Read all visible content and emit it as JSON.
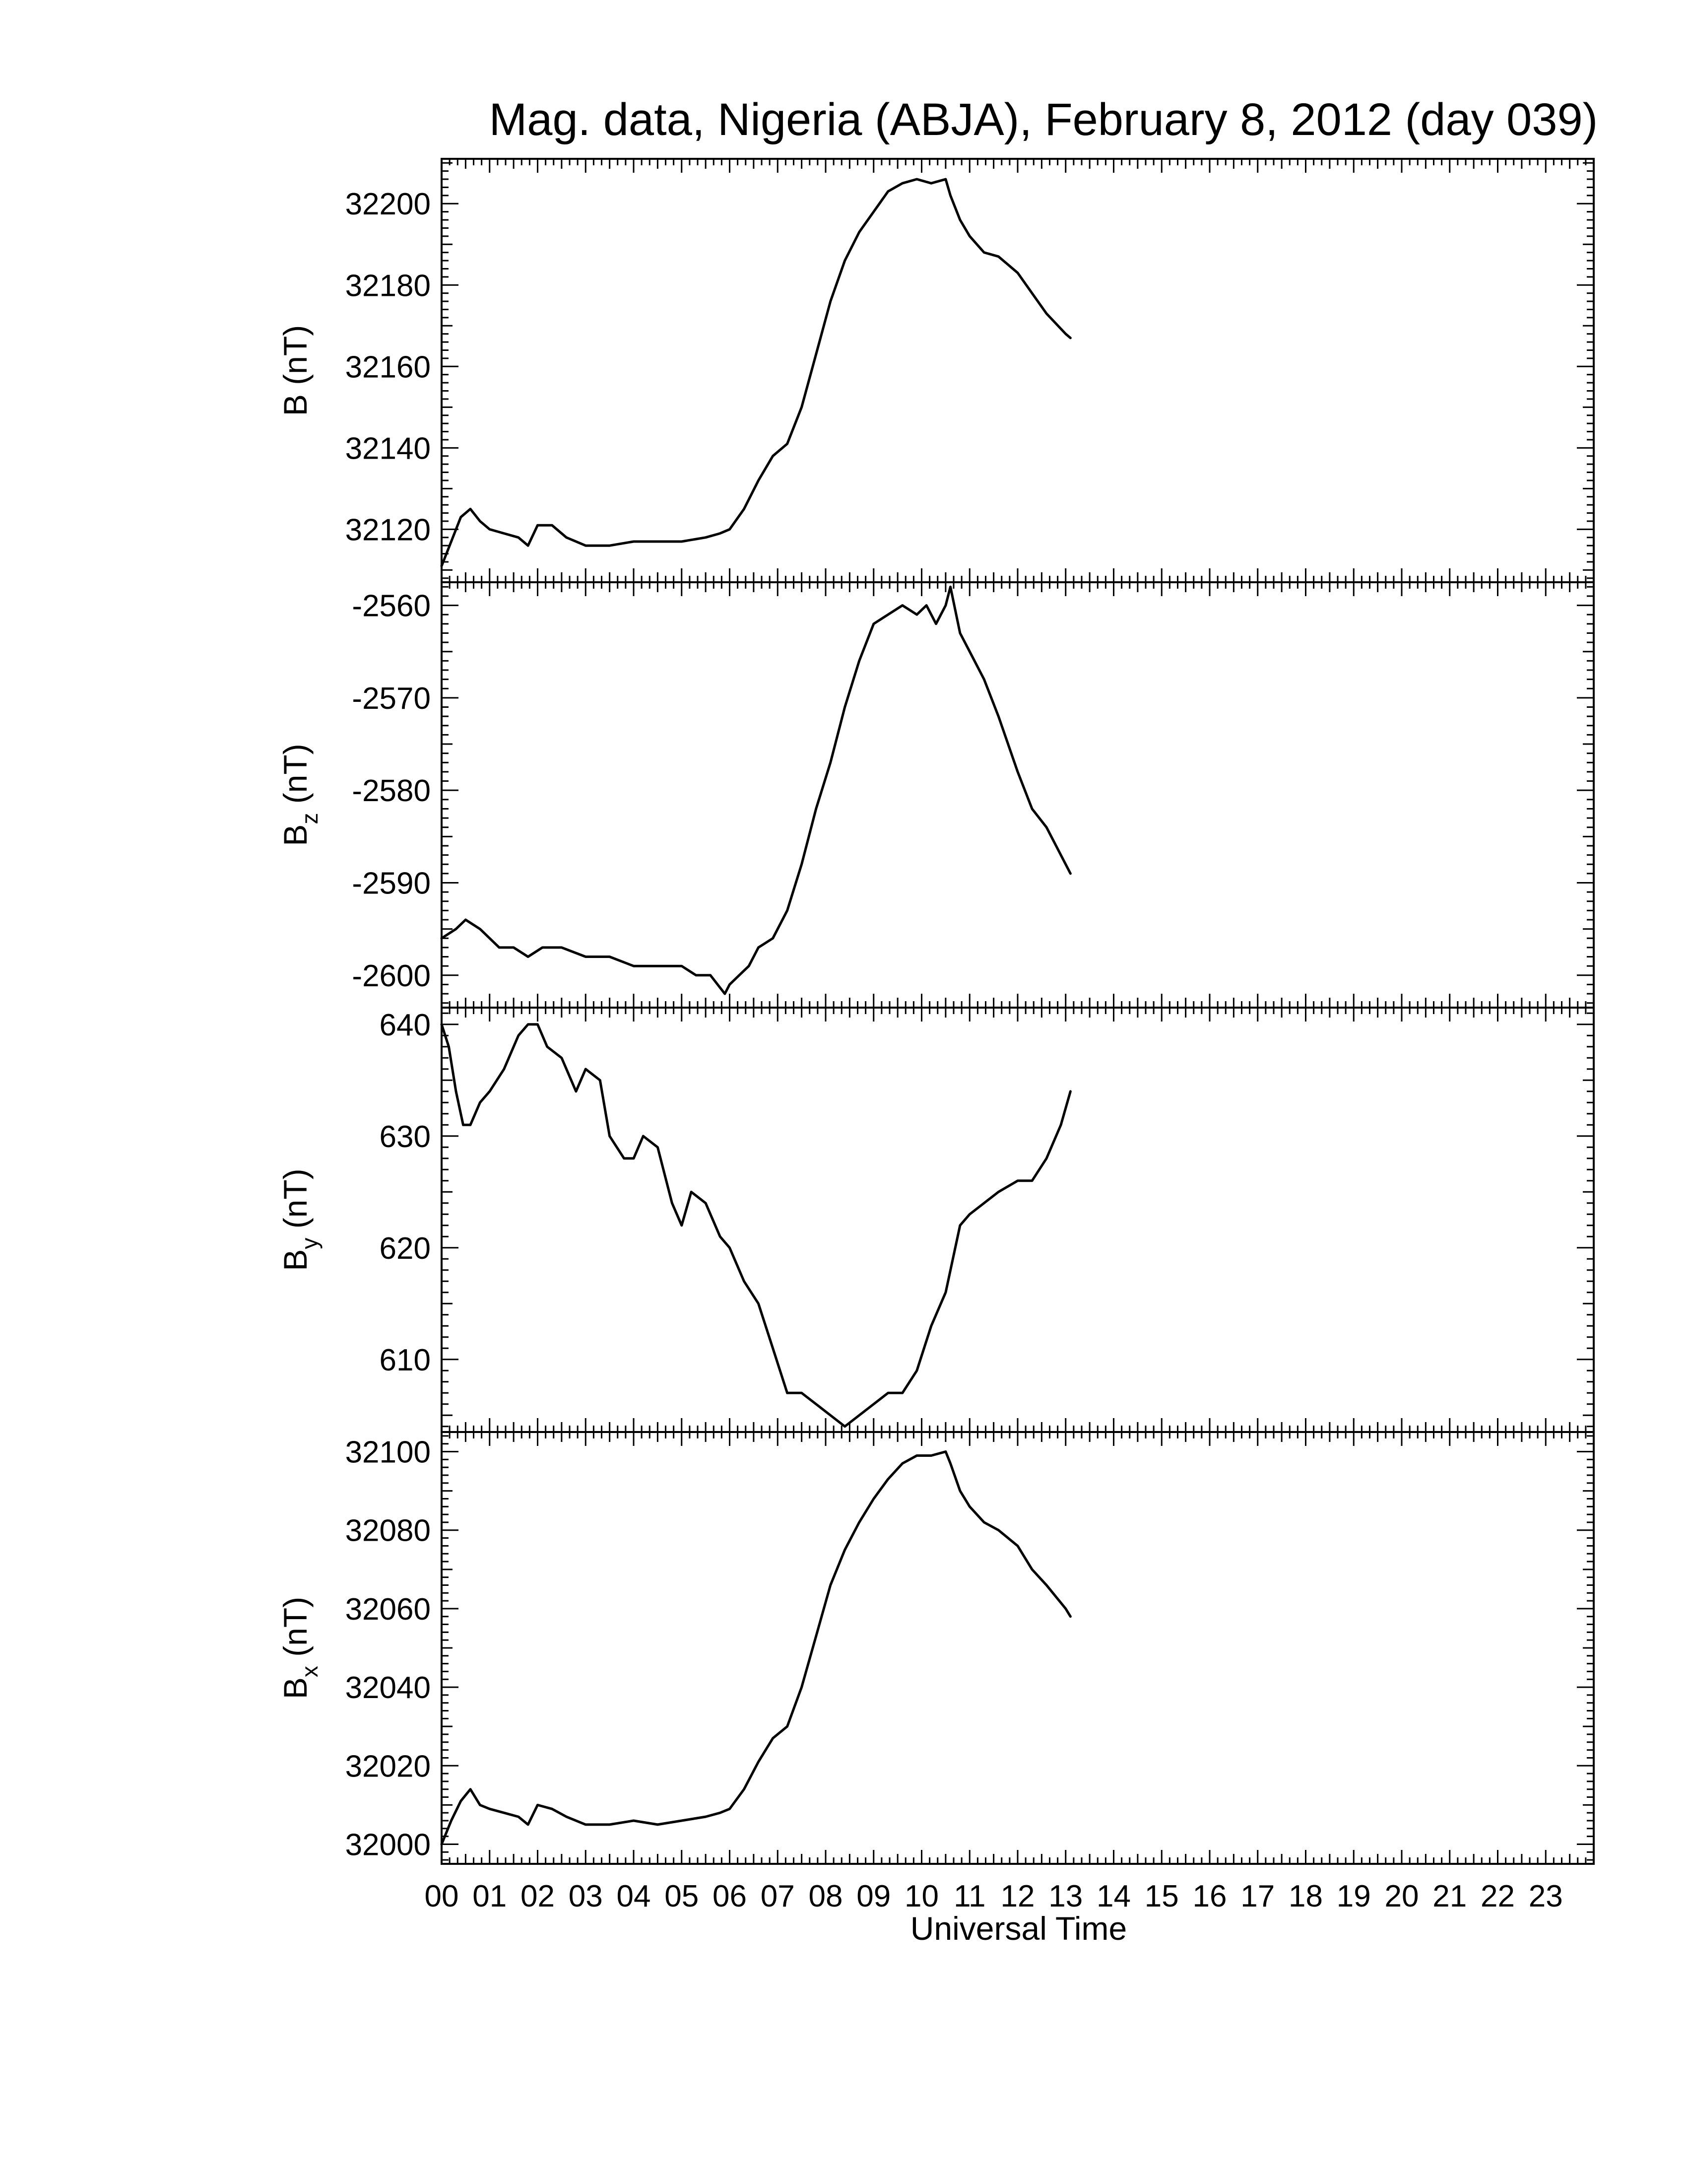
{
  "chart_data": {
    "type": "line",
    "title": "Mag. data, Nigeria (ABJA), February 8, 2012 (day 039)",
    "xlabel": "Universal Time",
    "x_unit": "hour",
    "xlim": [
      0,
      24
    ],
    "x_tick_labels": [
      "00",
      "01",
      "02",
      "03",
      "04",
      "05",
      "06",
      "07",
      "08",
      "09",
      "10",
      "11",
      "12",
      "13",
      "14",
      "15",
      "16",
      "17",
      "18",
      "19",
      "20",
      "21",
      "22",
      "23"
    ],
    "grid": false,
    "panels": [
      {
        "id": "B",
        "ylabel_main": "B",
        "ylabel_sub": "",
        "ylabel_unit": "(nT)",
        "ylim": [
          32107,
          32211
        ],
        "yticks": [
          32120,
          32140,
          32160,
          32180,
          32200
        ],
        "x": [
          0.0,
          0.2,
          0.4,
          0.6,
          0.8,
          1.0,
          1.3,
          1.6,
          1.8,
          2.0,
          2.3,
          2.6,
          3.0,
          3.5,
          4.0,
          4.5,
          5.0,
          5.5,
          5.8,
          6.0,
          6.3,
          6.6,
          6.9,
          7.2,
          7.5,
          7.8,
          8.1,
          8.4,
          8.7,
          9.0,
          9.3,
          9.6,
          9.9,
          10.2,
          10.5,
          10.6,
          10.8,
          11.0,
          11.3,
          11.6,
          12.0,
          12.3,
          12.6,
          13.0,
          13.1
        ],
        "y": [
          32111,
          32117,
          32123,
          32125,
          32122,
          32120,
          32119,
          32118,
          32116,
          32121,
          32121,
          32118,
          32116,
          32116,
          32117,
          32117,
          32117,
          32118,
          32119,
          32120,
          32125,
          32132,
          32138,
          32141,
          32150,
          32163,
          32176,
          32186,
          32193,
          32198,
          32203,
          32205,
          32206,
          32205,
          32206,
          32202,
          32196,
          32192,
          32188,
          32187,
          32183,
          32178,
          32173,
          32168,
          32167
        ]
      },
      {
        "id": "Bz",
        "ylabel_main": "B",
        "ylabel_sub": "z",
        "ylabel_unit": "(nT)",
        "ylim": [
          -2603.5,
          -2557.5
        ],
        "yticks": [
          -2600,
          -2590,
          -2580,
          -2570,
          -2560
        ],
        "x": [
          0.0,
          0.3,
          0.5,
          0.8,
          1.2,
          1.5,
          1.8,
          2.1,
          2.5,
          3.0,
          3.5,
          4.0,
          4.5,
          5.0,
          5.3,
          5.6,
          5.9,
          6.0,
          6.2,
          6.4,
          6.6,
          6.9,
          7.2,
          7.5,
          7.8,
          8.1,
          8.4,
          8.7,
          9.0,
          9.3,
          9.6,
          9.9,
          10.1,
          10.3,
          10.5,
          10.6,
          10.8,
          11.0,
          11.3,
          11.6,
          12.0,
          12.3,
          12.6,
          12.9,
          13.1
        ],
        "y": [
          -2596,
          -2595,
          -2594,
          -2595,
          -2597,
          -2597,
          -2598,
          -2597,
          -2597,
          -2598,
          -2598,
          -2599,
          -2599,
          -2599,
          -2600,
          -2600,
          -2602,
          -2601,
          -2600,
          -2599,
          -2597,
          -2596,
          -2593,
          -2588,
          -2582,
          -2577,
          -2571,
          -2566,
          -2562,
          -2561,
          -2560,
          -2561,
          -2560,
          -2562,
          -2560,
          -2558,
          -2563,
          -2565,
          -2568,
          -2572,
          -2578,
          -2582,
          -2584,
          -2587,
          -2589
        ]
      },
      {
        "id": "By",
        "ylabel_main": "B",
        "ylabel_sub": "y",
        "ylabel_unit": "(nT)",
        "ylim": [
          603.5,
          641.5
        ],
        "yticks": [
          610,
          620,
          630,
          640
        ],
        "x": [
          0.0,
          0.15,
          0.3,
          0.45,
          0.6,
          0.8,
          1.0,
          1.3,
          1.6,
          1.8,
          2.0,
          2.2,
          2.5,
          2.8,
          3.0,
          3.3,
          3.5,
          3.8,
          4.0,
          4.2,
          4.5,
          4.8,
          5.0,
          5.2,
          5.5,
          5.8,
          6.0,
          6.3,
          6.6,
          6.9,
          7.2,
          7.5,
          7.8,
          8.1,
          8.4,
          8.7,
          9.0,
          9.3,
          9.6,
          9.9,
          10.2,
          10.5,
          10.8,
          11.0,
          11.3,
          11.6,
          12.0,
          12.3,
          12.6,
          12.9,
          13.1
        ],
        "y": [
          640,
          638,
          634,
          631,
          631,
          633,
          634,
          636,
          639,
          640,
          640,
          638,
          637,
          634,
          636,
          635,
          630,
          628,
          628,
          630,
          629,
          624,
          622,
          625,
          624,
          621,
          620,
          617,
          615,
          611,
          607,
          607,
          606,
          605,
          604,
          605,
          606,
          607,
          607,
          609,
          613,
          616,
          622,
          623,
          624,
          625,
          626,
          626,
          628,
          631,
          634
        ]
      },
      {
        "id": "Bx",
        "ylabel_main": "B",
        "ylabel_sub": "x",
        "ylabel_unit": "(nT)",
        "ylim": [
          31995,
          32105
        ],
        "yticks": [
          32000,
          32020,
          32040,
          32060,
          32080,
          32100
        ],
        "x": [
          0.0,
          0.2,
          0.4,
          0.6,
          0.8,
          1.0,
          1.3,
          1.6,
          1.8,
          2.0,
          2.3,
          2.6,
          3.0,
          3.5,
          4.0,
          4.5,
          5.0,
          5.5,
          5.8,
          6.0,
          6.3,
          6.6,
          6.9,
          7.2,
          7.5,
          7.8,
          8.1,
          8.4,
          8.7,
          9.0,
          9.3,
          9.6,
          9.9,
          10.2,
          10.5,
          10.6,
          10.8,
          11.0,
          11.3,
          11.6,
          12.0,
          12.3,
          12.6,
          13.0,
          13.1
        ],
        "y": [
          32000,
          32006,
          32011,
          32014,
          32010,
          32009,
          32008,
          32007,
          32005,
          32010,
          32009,
          32007,
          32005,
          32005,
          32006,
          32005,
          32006,
          32007,
          32008,
          32009,
          32014,
          32021,
          32027,
          32030,
          32040,
          32053,
          32066,
          32075,
          32082,
          32088,
          32093,
          32097,
          32099,
          32099,
          32100,
          32097,
          32090,
          32086,
          32082,
          32080,
          32076,
          32070,
          32066,
          32060,
          32058
        ]
      }
    ]
  }
}
